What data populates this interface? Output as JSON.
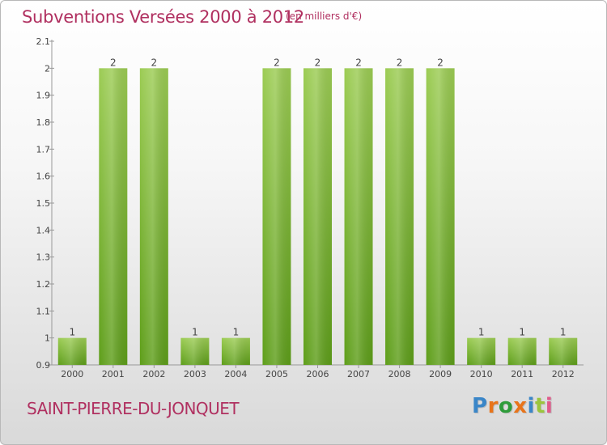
{
  "header": {
    "title": "Subventions Versées 2000 à 2012",
    "unit": "(en milliers d'€)"
  },
  "footer": {
    "commune": "SAINT-PIERRE-DU-JONQUET",
    "logo_text": "Proxiti",
    "logo_letters": [
      {
        "ch": "P",
        "color": "#3a86c8"
      },
      {
        "ch": "r",
        "color": "#e8741a"
      },
      {
        "ch": "o",
        "color": "#2e9c3a"
      },
      {
        "ch": "x",
        "color": "#e8741a"
      },
      {
        "ch": "i",
        "color": "#3a86c8"
      },
      {
        "ch": "t",
        "color": "#9bc53d"
      },
      {
        "ch": "i",
        "color": "#e05a8a"
      }
    ]
  },
  "colors": {
    "bar_light": "#9ccc54",
    "bar_dark": "#5e9e1a",
    "accent": "#b03060"
  },
  "chart_data": {
    "type": "bar",
    "categories": [
      "2000",
      "2001",
      "2002",
      "2003",
      "2004",
      "2005",
      "2006",
      "2007",
      "2008",
      "2009",
      "2010",
      "2011",
      "2012"
    ],
    "values": [
      1,
      2,
      2,
      1,
      1,
      2,
      2,
      2,
      2,
      2,
      1,
      1,
      1
    ],
    "value_labels": [
      "1",
      "2",
      "2",
      "1",
      "1",
      "2",
      "2",
      "2",
      "2",
      "2",
      "1",
      "1",
      "1"
    ],
    "ylim": [
      0.9,
      2.1
    ],
    "yticks": [
      0.9,
      1,
      1.1,
      1.2,
      1.3,
      1.4,
      1.5,
      1.6,
      1.7,
      1.8,
      1.9,
      2,
      2.1
    ],
    "ytick_labels": [
      "0.9",
      "1",
      "1.1",
      "1.2",
      "1.3",
      "1.4",
      "1.5",
      "1.6",
      "1.7",
      "1.8",
      "1.9",
      "2",
      "2.1"
    ],
    "title": "Subventions Versées 2000 à 2012",
    "xlabel": "",
    "ylabel": "",
    "grid": false,
    "legend": "none"
  }
}
